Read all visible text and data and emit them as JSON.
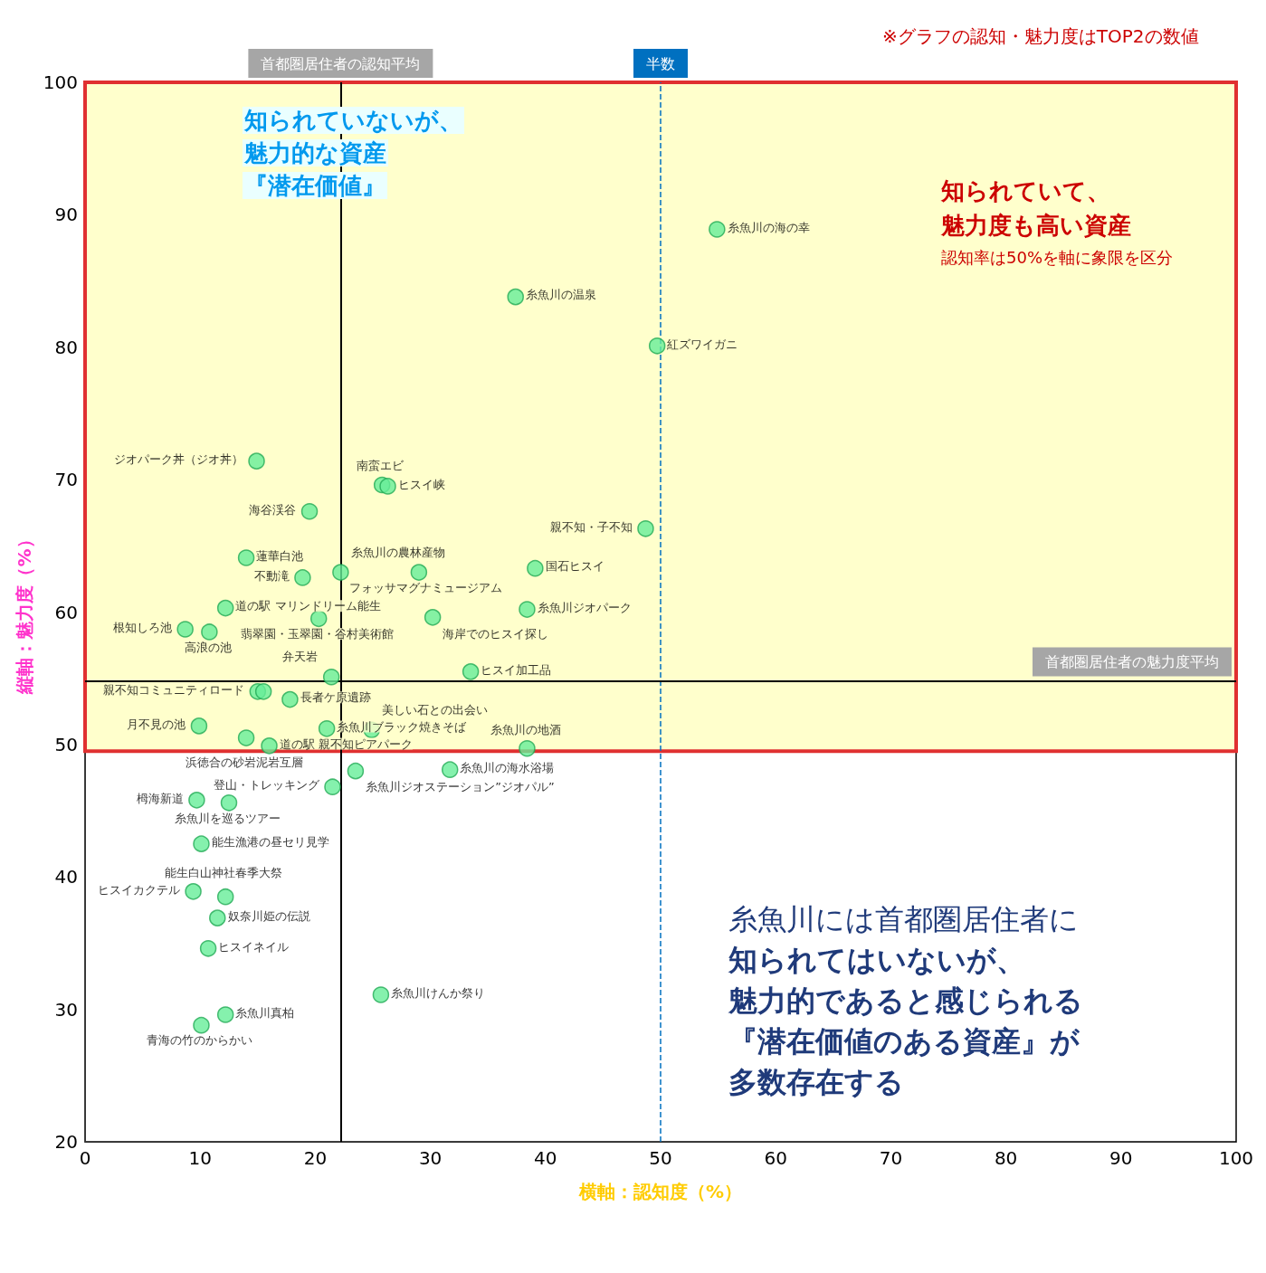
{
  "chart_data": {
    "type": "scatter",
    "xlabel": "横軸：認知度（%）",
    "ylabel": "縦軸：魅力度（%）",
    "xlim": [
      0,
      100
    ],
    "xticks": [
      0,
      10,
      20,
      30,
      40,
      50,
      60,
      70,
      80,
      90,
      100
    ],
    "ylim": [
      20,
      100
    ],
    "yticks": [
      20,
      30,
      40,
      50,
      60,
      70,
      80,
      90,
      100
    ],
    "grid": false,
    "marker": "circle",
    "series": [
      {
        "color": "#66ee99",
        "x": [
          54.9,
          37.4,
          49.7,
          14.9,
          25.8,
          26.3,
          19.5,
          48.7,
          14.0,
          18.9,
          22.2,
          29.0,
          39.1,
          12.2,
          20.3,
          30.2,
          38.4,
          8.7,
          10.8,
          21.4,
          33.5,
          15.0,
          15.5,
          17.8,
          9.9,
          14.0,
          16.0,
          21.0,
          24.9,
          38.4,
          31.7,
          23.5,
          21.5,
          9.7,
          12.5,
          10.1,
          9.4,
          12.2,
          11.5,
          10.7,
          25.7,
          12.2,
          10.1
        ],
        "values": [
          88.9,
          83.8,
          80.1,
          71.4,
          69.6,
          69.5,
          67.6,
          66.3,
          64.1,
          62.6,
          63.0,
          63.0,
          63.3,
          60.3,
          59.5,
          59.6,
          60.2,
          58.7,
          58.5,
          55.1,
          55.5,
          54.0,
          54.0,
          53.4,
          51.4,
          50.5,
          49.9,
          51.2,
          51.1,
          49.7,
          48.1,
          48.0,
          46.8,
          45.8,
          45.6,
          42.5,
          38.9,
          38.5,
          36.9,
          34.6,
          31.1,
          29.6,
          28.8
        ],
        "value_labels": [
          "糸魚川の海の幸",
          "糸魚川の温泉",
          "紅ズワイガニ",
          "ジオパーク丼（ジオ丼）",
          "南蛮エビ",
          "ヒスイ峡",
          "海谷渓谷",
          "親不知・子不知",
          "蓮華白池",
          "不動滝",
          "糸魚川の農林産物",
          "フォッサマグナミュージアム",
          "国石ヒスイ",
          "道の駅 マリンドリーム能生",
          "翡翠園・玉翠園・谷村美術館",
          "海岸でのヒスイ探し",
          "糸魚川ジオパーク",
          "根知しろ池",
          "高浪の池",
          "弁天岩",
          "ヒスイ加工品",
          "親不知コミュニティロード",
          null,
          "長者ケ原遺跡",
          "月不見の池",
          "浜徳合の砂岩泥岩互層",
          "道の駅 親不知ピアパーク",
          "糸魚川ブラック焼きそば",
          "美しい石との出会い",
          "糸魚川の地酒",
          "糸魚川の海水浴場",
          "糸魚川ジオステーション”ジオパル”",
          "登山・トレッキング",
          "栂海新道",
          "糸魚川を巡るツアー",
          "能生漁港の昼セリ見学",
          "ヒスイカクテル",
          "能生白山神社春季大祭",
          "奴奈川姫の伝説",
          "ヒスイネイル",
          "糸魚川けんか祭り",
          "糸魚川真柏",
          "青海の竹のからかい"
        ]
      }
    ],
    "ref_lines": [
      {
        "axis": "x",
        "value": 22.2,
        "label": "首都圏居住者の認知平均",
        "color": "#000000",
        "line_style": "solid"
      },
      {
        "axis": "x",
        "value": 50,
        "label": "半数",
        "color": "#0070c0",
        "line_style": "dashed"
      },
      {
        "axis": "y",
        "value": 54.8,
        "label": "首都圏居住者の魅力度平均",
        "color": "#000000",
        "line_style": "solid"
      }
    ],
    "bands": [
      {
        "axis": "y",
        "from": 49.5,
        "to": 100,
        "color": "#ffffcc",
        "label": null
      }
    ],
    "annotations": [
      "※グラフの認知・魅力度はTOP2の数値",
      "知られていないが、",
      "魅力的な資産",
      "『潜在価値』",
      "知られていて、",
      "魅力度も高い資産",
      "認知率は50%を軸に象限を区分",
      "糸魚川には首都圏居住者に",
      "知られてはいないが、",
      "魅力的であると感じられる",
      "『潜在価値のある資産』が",
      "多数存在する"
    ]
  }
}
